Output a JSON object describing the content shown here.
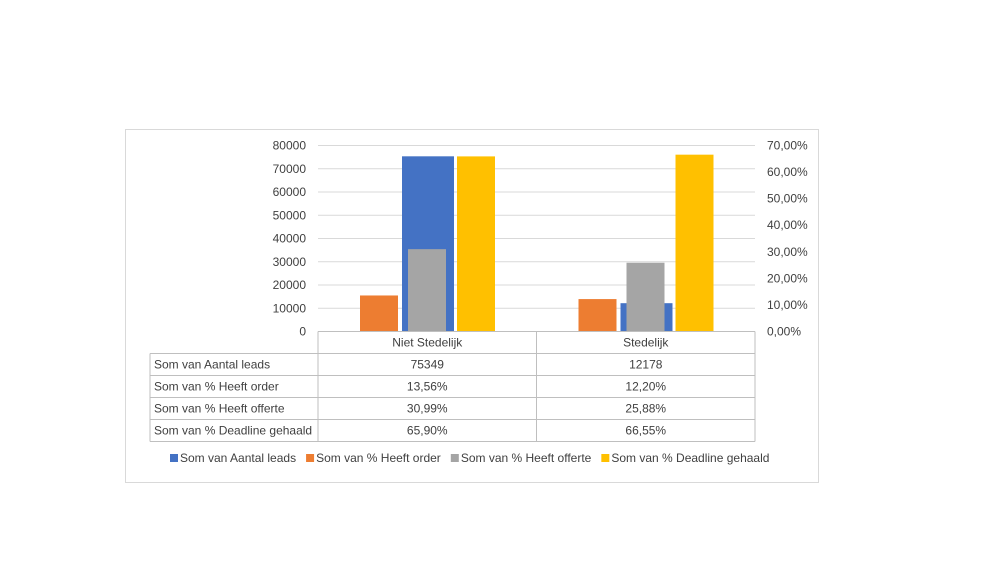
{
  "chart_data": {
    "type": "bar",
    "categories": [
      "Niet Stedelijk",
      "Stedelijk"
    ],
    "left_axis": {
      "ylim": [
        0,
        80000
      ],
      "ticks": [
        "0",
        "10000",
        "20000",
        "30000",
        "40000",
        "50000",
        "60000",
        "70000",
        "80000"
      ]
    },
    "right_axis": {
      "ylim": [
        0,
        0.7
      ],
      "ticks": [
        "0,00%",
        "10,00%",
        "20,00%",
        "30,00%",
        "40,00%",
        "50,00%",
        "60,00%",
        "70,00%"
      ]
    },
    "series": [
      {
        "name": "Som van Aantal leads",
        "axis": "left",
        "color": "#4472C4",
        "values": [
          75349,
          12178
        ],
        "labels": [
          "75349",
          "12178"
        ]
      },
      {
        "name": "Som van % Heeft order",
        "axis": "right",
        "color": "#ED7D31",
        "values": [
          0.1356,
          0.122
        ],
        "labels": [
          "13,56%",
          "12,20%"
        ]
      },
      {
        "name": "Som van % Heeft offerte",
        "axis": "right",
        "color": "#A5A5A5",
        "values": [
          0.3099,
          0.2588
        ],
        "labels": [
          "30,99%",
          "25,88%"
        ]
      },
      {
        "name": "Som van % Deadline gehaald",
        "axis": "right",
        "color": "#FFC000",
        "values": [
          0.659,
          0.6655
        ],
        "labels": [
          "65,90%",
          "66,55%"
        ]
      }
    ],
    "grid": true,
    "legend_position": "bottom",
    "data_table": true
  }
}
